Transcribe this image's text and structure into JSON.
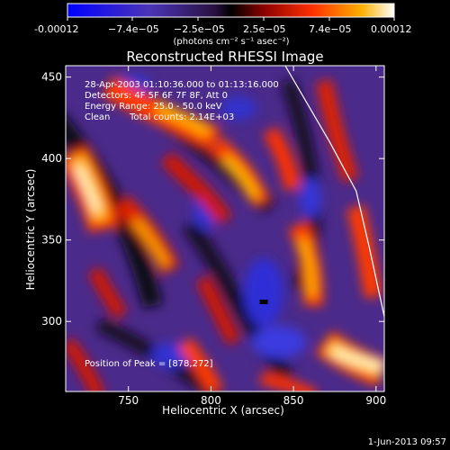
{
  "colorbar": {
    "tick_labels": [
      "-0.00012",
      "−7.4e−05",
      "−2.5e−05",
      "2.5e−05",
      "7.4e−05",
      "0.00012"
    ],
    "units_label": "(photons cm⁻² s⁻¹ asec⁻²)"
  },
  "chart_data": {
    "type": "heatmap",
    "title": "Reconstructed RHESSI Image",
    "xlabel": "Heliocentric X (arcsec)",
    "ylabel": "Heliocentric Y (arcsec)",
    "xlim": [
      712,
      905
    ],
    "ylim": [
      257,
      457
    ],
    "x_ticks": [
      750,
      800,
      850,
      900
    ],
    "y_ticks": [
      300,
      350,
      400,
      450
    ],
    "color_range": [
      -0.00012,
      0.00012
    ],
    "colormap": [
      "#000080",
      "#1a1aff",
      "#3b1f7a",
      "#5a2a8a",
      "#2a1040",
      "#000000",
      "#8b0000",
      "#ff2000",
      "#ff8c00",
      "#ffd000",
      "#ffffe0"
    ],
    "annotations": [
      "28-Apr-2003 01:10:36.000 to 01:13:16.000",
      "Detectors: 4F 5F 6F 7F 8F, Att 0",
      "Energy Range: 25.0 - 50.0 keV",
      "Clean",
      "Total counts: 2.14E+03"
    ],
    "peak_label": "Position of Peak = [878,272]",
    "peak": {
      "x": 878,
      "y": 272
    },
    "limb_points": [
      [
        845,
        457
      ],
      [
        872,
        410
      ],
      [
        888,
        380
      ],
      [
        896,
        345
      ],
      [
        905,
        303
      ]
    ],
    "marker": {
      "x": 832,
      "y": 312
    }
  },
  "timestamp": "1-Jun-2013 09:57"
}
